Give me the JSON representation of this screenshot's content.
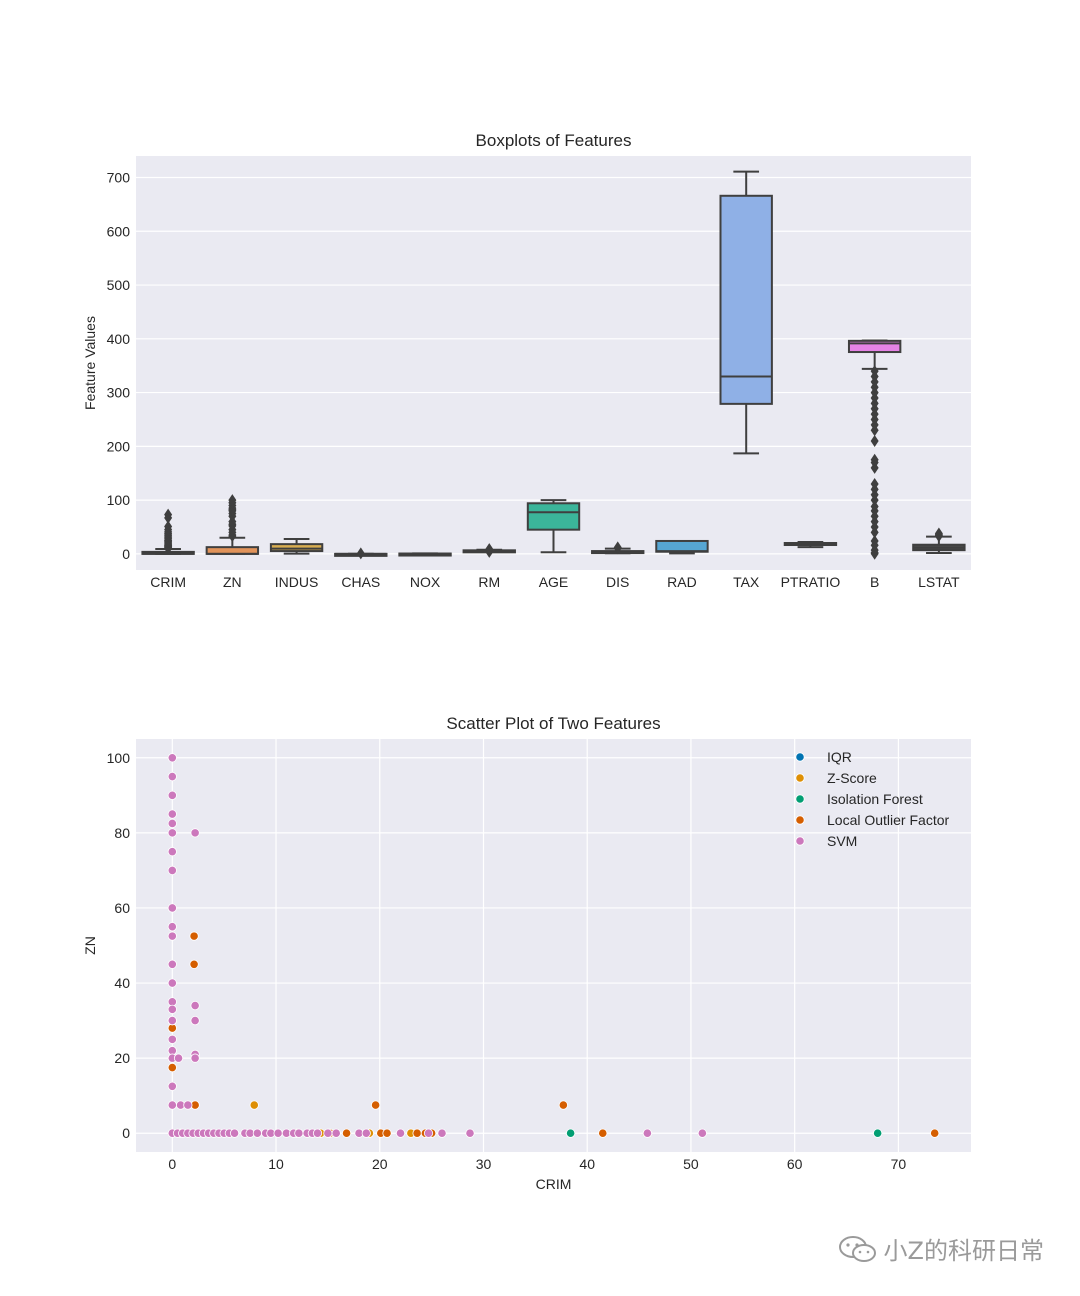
{
  "chart_data": [
    {
      "type": "box",
      "title": "Boxplots of Features",
      "xlabel": "",
      "ylabel": "Feature Values",
      "ylim": [
        -30,
        740
      ],
      "yticks": [
        0,
        100,
        200,
        300,
        400,
        500,
        600,
        700
      ],
      "grid": true,
      "categories": [
        "CRIM",
        "ZN",
        "INDUS",
        "CHAS",
        "NOX",
        "RM",
        "AGE",
        "DIS",
        "RAD",
        "TAX",
        "PTRATIO",
        "B",
        "LSTAT"
      ],
      "boxes": [
        {
          "name": "CRIM",
          "color": "#5b7fb0",
          "min": 0,
          "q1": 0.1,
          "median": 0.3,
          "q3": 3.7,
          "max": 9,
          "outliers": [
            10,
            11,
            12,
            13,
            14,
            15,
            16,
            18,
            20,
            22,
            24,
            25,
            28,
            30,
            33,
            35,
            38,
            41,
            45,
            51,
            67,
            73
          ]
        },
        {
          "name": "ZN",
          "color": "#e1935a",
          "min": 0,
          "q1": 0,
          "median": 0,
          "q3": 12.5,
          "max": 30,
          "outliers": [
            33,
            35,
            40,
            45,
            52,
            55,
            60,
            70,
            75,
            80,
            82,
            85,
            90,
            95,
            100
          ]
        },
        {
          "name": "INDUS",
          "color": "#d8ad52",
          "min": 0.5,
          "q1": 5.2,
          "median": 9.7,
          "q3": 18.1,
          "max": 27.7,
          "outliers": []
        },
        {
          "name": "CHAS",
          "color": "#4bb08a",
          "min": 0,
          "q1": 0,
          "median": 0,
          "q3": 0,
          "max": 0,
          "outliers": [
            1
          ]
        },
        {
          "name": "NOX",
          "color": "#4e9acb",
          "min": 0.39,
          "q1": 0.45,
          "median": 0.54,
          "q3": 0.62,
          "max": 0.87,
          "outliers": []
        },
        {
          "name": "RM",
          "color": "#d4a0d3",
          "min": 4.8,
          "q1": 5.9,
          "median": 6.2,
          "q3": 6.6,
          "max": 7.7,
          "outliers": [
            3.6,
            8.4,
            8.8
          ]
        },
        {
          "name": "AGE",
          "color": "#3bb59a",
          "min": 2.9,
          "q1": 45,
          "median": 77.5,
          "q3": 94.1,
          "max": 100,
          "outliers": []
        },
        {
          "name": "DIS",
          "color": "#b3b3b3",
          "min": 1.1,
          "q1": 2.1,
          "median": 3.2,
          "q3": 5.2,
          "max": 9.8,
          "outliers": [
            10.5,
            12.1
          ]
        },
        {
          "name": "RAD",
          "color": "#56a6d3",
          "min": 1,
          "q1": 4,
          "median": 5,
          "q3": 24,
          "max": 24,
          "outliers": []
        },
        {
          "name": "TAX",
          "color": "#8fb0e6",
          "min": 187,
          "q1": 279,
          "median": 330,
          "q3": 666,
          "max": 711,
          "outliers": []
        },
        {
          "name": "PTRATIO",
          "color": "#7a7a7a",
          "min": 12.6,
          "q1": 17.4,
          "median": 19.05,
          "q3": 20.2,
          "max": 22,
          "outliers": []
        },
        {
          "name": "B",
          "color": "#e583e5",
          "min": 344,
          "q1": 375.4,
          "median": 391.4,
          "q3": 396.2,
          "max": 396.9,
          "outliers": [
            0.3,
            2,
            7,
            16,
            24,
            40,
            50,
            60,
            70,
            80,
            88,
            100,
            110,
            120,
            130,
            160,
            170,
            175,
            210,
            230,
            240,
            250,
            260,
            270,
            280,
            290,
            300,
            310,
            320,
            330,
            340
          ]
        },
        {
          "name": "LSTAT",
          "color": "#4a4a4a",
          "min": 1.7,
          "q1": 6.9,
          "median": 11.4,
          "q3": 17,
          "max": 32,
          "outliers": [
            33,
            34.4,
            36,
            37.9
          ]
        }
      ]
    },
    {
      "type": "scatter",
      "title": "Scatter Plot of Two Features",
      "xlabel": "CRIM",
      "ylabel": "ZN",
      "xlim": [
        -3.5,
        77
      ],
      "ylim": [
        -5,
        105
      ],
      "xticks": [
        0,
        10,
        20,
        30,
        40,
        50,
        60,
        70
      ],
      "yticks": [
        0,
        20,
        40,
        60,
        80,
        100
      ],
      "grid": true,
      "legend_position": "top-right",
      "series": [
        {
          "name": "IQR",
          "color": "#0173b2",
          "points": []
        },
        {
          "name": "Z-Score",
          "color": "#de8f05",
          "points": [
            [
              2.2,
              7.5
            ],
            [
              7.9,
              7.5
            ],
            [
              0.8,
              0
            ],
            [
              12,
              0
            ],
            [
              14.3,
              0
            ],
            [
              19,
              0
            ],
            [
              23,
              0
            ]
          ]
        },
        {
          "name": "Isolation Forest",
          "color": "#029e73",
          "points": [
            [
              38.4,
              0
            ],
            [
              68,
              0
            ]
          ]
        },
        {
          "name": "Local Outlier Factor",
          "color": "#d55e00",
          "points": [
            [
              0,
              17.5
            ],
            [
              0,
              28
            ],
            [
              0,
              30
            ],
            [
              2.1,
              52.5
            ],
            [
              2.1,
              45
            ],
            [
              2.2,
              7.5
            ],
            [
              19.6,
              7.5
            ],
            [
              37.7,
              7.5
            ],
            [
              41.5,
              0
            ],
            [
              73.5,
              0
            ],
            [
              15.2,
              0
            ],
            [
              16.8,
              0
            ],
            [
              20.1,
              0
            ],
            [
              20.7,
              0
            ],
            [
              23.6,
              0
            ],
            [
              24.4,
              0
            ],
            [
              25,
              0
            ]
          ]
        },
        {
          "name": "SVM",
          "color": "#cc78bc",
          "points": [
            [
              0,
              100
            ],
            [
              0,
              95
            ],
            [
              0,
              90
            ],
            [
              0,
              85
            ],
            [
              0,
              82.5
            ],
            [
              0,
              80
            ],
            [
              0,
              75
            ],
            [
              0,
              70
            ],
            [
              0,
              60
            ],
            [
              0,
              55
            ],
            [
              0,
              52.5
            ],
            [
              0,
              45
            ],
            [
              0,
              40
            ],
            [
              0,
              35
            ],
            [
              0,
              33
            ],
            [
              0,
              30
            ],
            [
              0,
              25
            ],
            [
              0,
              22
            ],
            [
              0,
              20
            ],
            [
              0.6,
              20
            ],
            [
              0,
              12.5
            ],
            [
              0,
              7.5
            ],
            [
              0.8,
              7.5
            ],
            [
              1.5,
              7.5
            ],
            [
              2.2,
              80
            ],
            [
              2.2,
              34
            ],
            [
              2.2,
              30
            ],
            [
              2.2,
              21
            ],
            [
              2.2,
              20
            ],
            [
              0,
              0
            ],
            [
              0.5,
              0
            ],
            [
              1,
              0
            ],
            [
              1.5,
              0
            ],
            [
              2,
              0
            ],
            [
              2.5,
              0
            ],
            [
              3,
              0
            ],
            [
              3.5,
              0
            ],
            [
              4,
              0
            ],
            [
              4.5,
              0
            ],
            [
              5,
              0
            ],
            [
              5.5,
              0
            ],
            [
              6,
              0
            ],
            [
              7,
              0
            ],
            [
              7.5,
              0
            ],
            [
              8.2,
              0
            ],
            [
              9,
              0
            ],
            [
              9.5,
              0
            ],
            [
              10.2,
              0
            ],
            [
              11,
              0
            ],
            [
              11.7,
              0
            ],
            [
              12.2,
              0
            ],
            [
              13,
              0
            ],
            [
              13.5,
              0
            ],
            [
              14,
              0
            ],
            [
              15,
              0
            ],
            [
              15.8,
              0
            ],
            [
              18,
              0
            ],
            [
              18.7,
              0
            ],
            [
              22,
              0
            ],
            [
              24.7,
              0
            ],
            [
              26,
              0
            ],
            [
              28.7,
              0
            ],
            [
              45.8,
              0
            ],
            [
              51.1,
              0
            ]
          ]
        }
      ]
    }
  ],
  "watermark": {
    "text": "小Z的科研日常",
    "icon": "wechat-icon"
  }
}
